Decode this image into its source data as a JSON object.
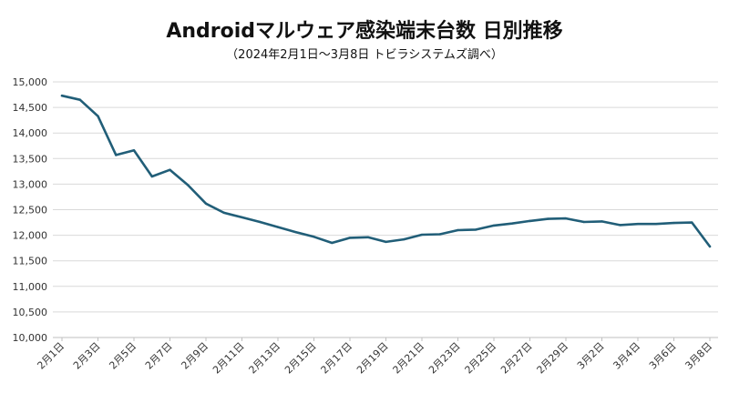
{
  "header": {
    "title": "Androidマルウェア感染端末台数 日別推移",
    "subtitle": "（2024年2月1日～3月8日 トビラシステムズ調べ）"
  },
  "colors": {
    "line": "#215e78",
    "grid": "#d9d9d9",
    "axis": "#bfbfbf"
  },
  "chart_data": {
    "type": "line",
    "title": "Androidマルウェア感染端末台数 日別推移",
    "subtitle": "（2024年2月1日～3月8日 トビラシステムズ調べ）",
    "xlabel": "",
    "ylabel": "",
    "ylim": [
      10000,
      15000
    ],
    "ytick_step": 500,
    "y_ticks": [
      "10,000",
      "10,500",
      "11,000",
      "11,500",
      "12,000",
      "12,500",
      "13,000",
      "13,500",
      "14,000",
      "14,500",
      "15,000"
    ],
    "grid": true,
    "legend": "none",
    "x_tick_labels": [
      "2月1日",
      "2月3日",
      "2月5日",
      "2月7日",
      "2月9日",
      "2月11日",
      "2月13日",
      "2月15日",
      "2月17日",
      "2月19日",
      "2月21日",
      "2月23日",
      "2月25日",
      "2月27日",
      "2月29日",
      "3月2日",
      "3月4日",
      "3月6日",
      "3月8日"
    ],
    "x": [
      "2月1日",
      "2月2日",
      "2月3日",
      "2月4日",
      "2月5日",
      "2月6日",
      "2月7日",
      "2月8日",
      "2月9日",
      "2月10日",
      "2月11日",
      "2月12日",
      "2月13日",
      "2月14日",
      "2月15日",
      "2月16日",
      "2月17日",
      "2月18日",
      "2月19日",
      "2月20日",
      "2月21日",
      "2月22日",
      "2月23日",
      "2月24日",
      "2月25日",
      "2月26日",
      "2月27日",
      "2月28日",
      "2月29日",
      "3月1日",
      "3月2日",
      "3月3日",
      "3月4日",
      "3月5日",
      "3月6日",
      "3月7日",
      "3月8日"
    ],
    "series": [
      {
        "values": [
          14730,
          14650,
          14330,
          13570,
          13660,
          13150,
          13280,
          12980,
          12620,
          12440,
          12350,
          12260,
          12160,
          12060,
          11970,
          11850,
          11950,
          11960,
          11870,
          11920,
          12010,
          12020,
          12100,
          12110,
          12190,
          12230,
          12280,
          12320,
          12330,
          12260,
          12270,
          12200,
          12220,
          12220,
          12240,
          12250,
          11780
        ]
      }
    ]
  }
}
